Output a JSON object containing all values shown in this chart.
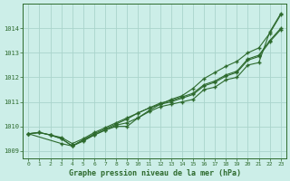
{
  "xlabel": "Graphe pression niveau de la mer (hPa)",
  "bg_color": "#cceee8",
  "grid_color": "#aad4cc",
  "line_color": "#2d6a2d",
  "xlim": [
    -0.5,
    23.5
  ],
  "ylim": [
    1008.7,
    1015.0
  ],
  "xticks": [
    0,
    1,
    2,
    3,
    4,
    5,
    6,
    7,
    8,
    9,
    10,
    11,
    12,
    13,
    14,
    15,
    16,
    17,
    18,
    19,
    20,
    21,
    22,
    23
  ],
  "yticks": [
    1009,
    1010,
    1011,
    1012,
    1013,
    1014
  ],
  "line1_x": [
    0,
    1,
    2,
    3,
    4,
    5,
    6,
    7,
    8,
    9,
    10,
    11,
    12,
    13,
    14,
    15,
    16,
    17,
    18,
    19,
    20,
    21,
    22,
    23
  ],
  "line1_y": [
    1009.7,
    1009.75,
    1009.65,
    1009.5,
    1009.2,
    1009.45,
    1009.65,
    1009.85,
    1010.05,
    1010.15,
    1010.35,
    1010.6,
    1010.8,
    1010.9,
    1011.0,
    1011.1,
    1011.5,
    1011.6,
    1011.9,
    1012.0,
    1012.5,
    1012.6,
    1013.85,
    1014.6
  ],
  "line2_x": [
    0,
    1,
    2,
    3,
    4,
    5,
    6,
    7,
    8,
    9,
    10,
    11,
    12,
    13,
    14,
    15,
    16,
    17,
    18,
    19,
    20,
    21,
    22,
    23
  ],
  "line2_y": [
    1009.7,
    1009.75,
    1009.65,
    1009.55,
    1009.3,
    1009.5,
    1009.75,
    1009.95,
    1010.15,
    1010.35,
    1010.55,
    1010.75,
    1010.95,
    1011.05,
    1011.2,
    1011.35,
    1011.7,
    1011.85,
    1012.1,
    1012.25,
    1012.75,
    1012.9,
    1013.5,
    1014.0
  ],
  "line3_x": [
    0,
    1,
    2,
    3,
    4,
    5,
    6,
    7,
    8,
    9,
    10,
    11,
    12,
    13,
    14,
    15,
    16,
    17,
    18,
    19,
    20,
    21,
    22,
    23
  ],
  "line3_y": [
    1009.7,
    1009.75,
    1009.65,
    1009.5,
    1009.2,
    1009.45,
    1009.7,
    1009.9,
    1010.1,
    1010.3,
    1010.55,
    1010.75,
    1010.9,
    1011.0,
    1011.15,
    1011.3,
    1011.65,
    1011.8,
    1012.05,
    1012.2,
    1012.7,
    1012.85,
    1013.45,
    1013.95
  ],
  "line4_x": [
    0,
    3,
    4,
    5,
    6,
    7,
    8,
    9,
    10,
    11,
    12,
    13,
    14,
    15,
    16,
    17,
    18,
    19,
    20,
    21,
    22,
    23
  ],
  "line4_y": [
    1009.7,
    1009.3,
    1009.2,
    1009.4,
    1009.65,
    1009.85,
    1010.0,
    1010.0,
    1010.35,
    1010.65,
    1010.9,
    1011.1,
    1011.25,
    1011.55,
    1011.95,
    1012.2,
    1012.45,
    1012.65,
    1013.0,
    1013.2,
    1013.8,
    1014.55
  ]
}
